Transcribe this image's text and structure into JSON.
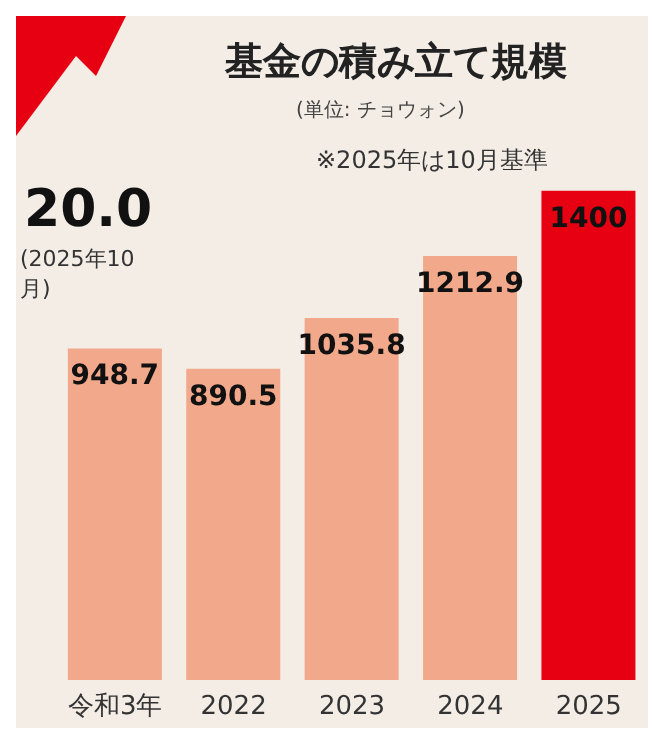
{
  "chart_data": {
    "type": "bar",
    "title": "基金の積み立て規模",
    "subtitle": "(単位: チョウォン)",
    "annotations": [
      "※2025年は10月基準",
      "20.0",
      "(2025年10月)"
    ],
    "categories": [
      "令和3年",
      "2022",
      "2023",
      "2024",
      "2025"
    ],
    "values": [
      948.7,
      890.5,
      1035.8,
      1212.9,
      1400
    ],
    "colors": [
      "#f2a98b",
      "#f2a98b",
      "#f2a98b",
      "#f2a98b",
      "#e60012"
    ],
    "ylim": [
      0,
      1900
    ],
    "data_labels": true,
    "tick_labels": "x",
    "grid": false,
    "legend": false
  }
}
